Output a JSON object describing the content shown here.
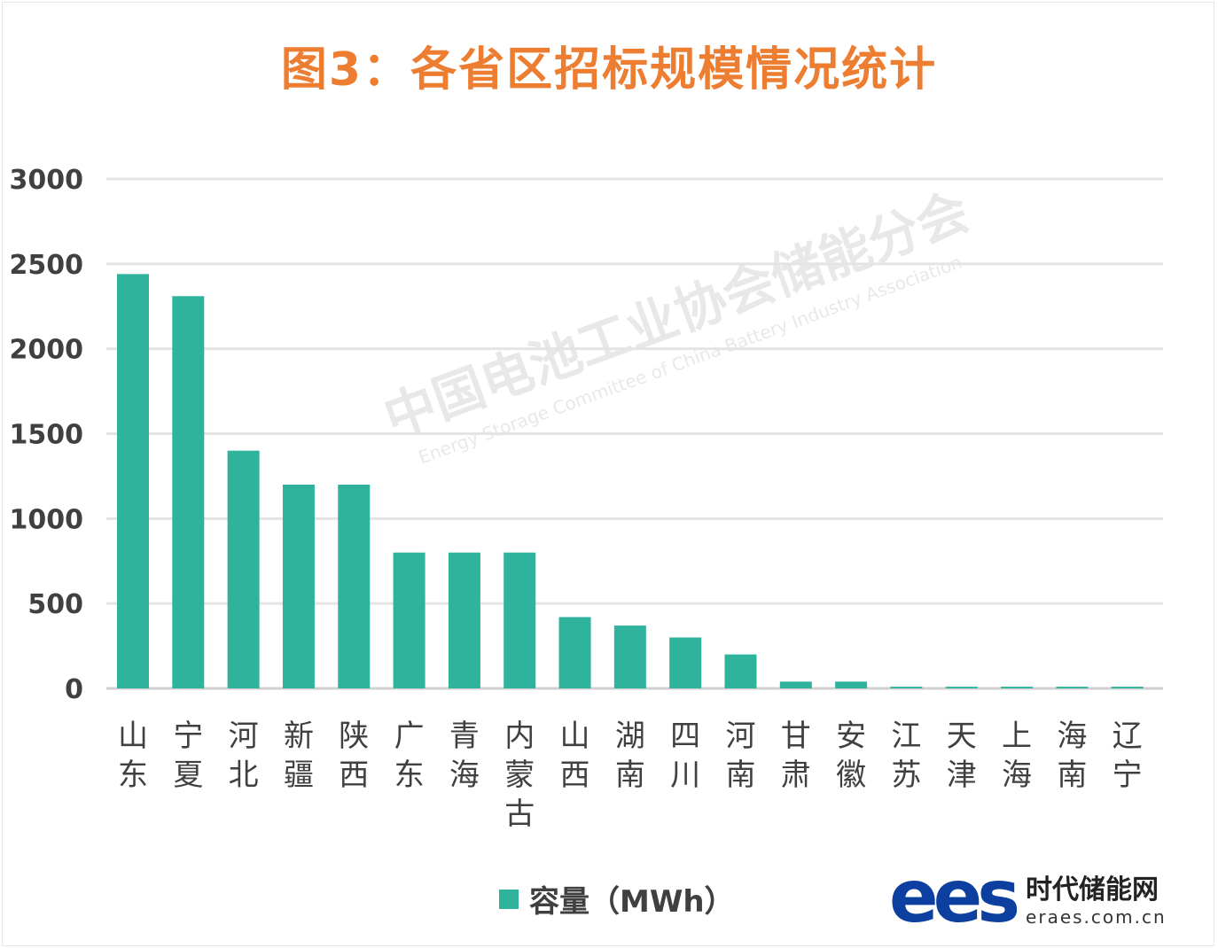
{
  "chart_data": {
    "type": "bar",
    "title": "图3：各省区招标规模情况统计",
    "categories": [
      "山东",
      "宁夏",
      "河北",
      "新疆",
      "陕西",
      "广东",
      "青海",
      "内蒙古",
      "山西",
      "湖南",
      "四川",
      "河南",
      "甘肃",
      "安徽",
      "江苏",
      "天津",
      "上海",
      "海南",
      "辽宁"
    ],
    "series": [
      {
        "name": "容量（MWh）",
        "values": [
          2440,
          2310,
          1400,
          1200,
          1200,
          800,
          800,
          800,
          420,
          370,
          300,
          200,
          40,
          40,
          10,
          10,
          10,
          10,
          10
        ]
      }
    ],
    "xlabel": "",
    "ylabel": "",
    "ylim": [
      0,
      3000
    ],
    "yticks": [
      "0",
      "500",
      "1000",
      "1500",
      "2000",
      "2500",
      "3000"
    ],
    "grid": true,
    "legend_position": "bottom",
    "bar_color": "#2FB39C",
    "title_color": "#ED7D31"
  },
  "watermark": {
    "cn": "中国电池工业协会储能分会",
    "en": "Energy Storage Committee of China Battery Industry Association"
  },
  "logo": {
    "mark": "ees",
    "name": "时代储能网",
    "url": "eraes.com.cn"
  }
}
